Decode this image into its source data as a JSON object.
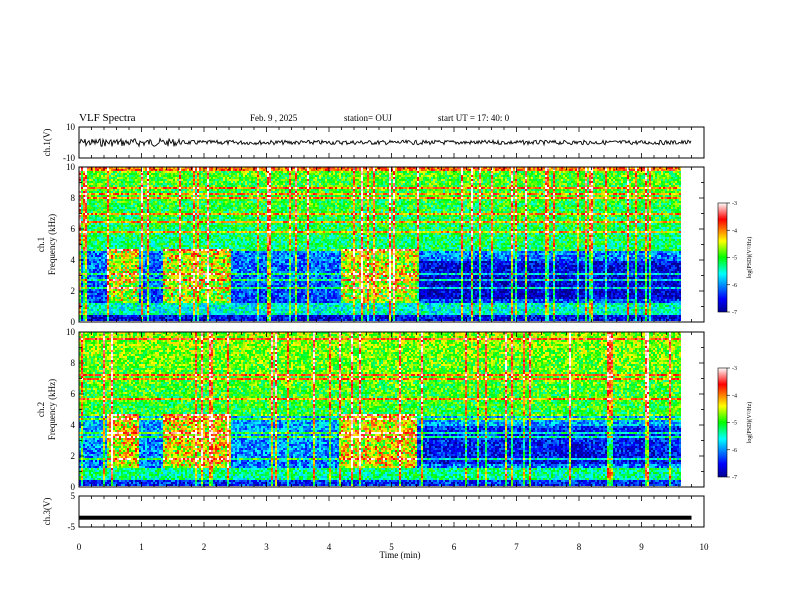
{
  "header": {
    "title": "VLF Spectra",
    "date": "Feb. 9 , 2025",
    "station": "station= OUJ",
    "start": "start UT = 17: 40: 0"
  },
  "chart_data": [
    {
      "type": "line",
      "panel": "ch1-waveform",
      "ylabel": "ch.1(V)",
      "ylim": [
        -10,
        10
      ],
      "yticks": [
        "10",
        "-10"
      ],
      "xlim": [
        0,
        10
      ],
      "series": [
        {
          "x": [
            0,
            9.8
          ],
          "y": [
            0,
            0
          ]
        }
      ]
    },
    {
      "type": "heatmap",
      "panel": "ch1-spectrogram",
      "ylabel_lines": [
        "ch.1",
        "Frequency (kHz)"
      ],
      "ylim": [
        0,
        10
      ],
      "yticks": [
        "0",
        "2",
        "4",
        "6",
        "8",
        "10"
      ],
      "xlim": [
        0,
        10
      ],
      "data_extent_x": [
        0,
        9.8
      ],
      "colorbar": {
        "label": "log(PSD)(V²/Hz)",
        "range": [
          -7,
          -3
        ],
        "ticks": [
          "-3",
          "-4",
          "-5",
          "-6",
          "-7"
        ]
      }
    },
    {
      "type": "heatmap",
      "panel": "ch2-spectrogram",
      "ylabel_lines": [
        "ch.2",
        "Frequency (kHz)"
      ],
      "ylim": [
        0,
        10
      ],
      "yticks": [
        "0",
        "2",
        "4",
        "6",
        "8",
        "10"
      ],
      "xlim": [
        0,
        10
      ],
      "data_extent_x": [
        0,
        9.8
      ],
      "colorbar": {
        "label": "log(PSD)(V²/Hz)",
        "range": [
          -7,
          -3
        ],
        "ticks": [
          "-3",
          "-4",
          "-5",
          "-6",
          "-7"
        ]
      }
    },
    {
      "type": "line",
      "panel": "ch3-waveform",
      "ylabel": "ch.3(V)",
      "ylim": [
        -5,
        5
      ],
      "yticks": [
        "5",
        "-5"
      ],
      "xlim": [
        0,
        10
      ],
      "xlabel": "Time (min)",
      "xticks": [
        "0",
        "1",
        "2",
        "3",
        "4",
        "5",
        "6",
        "7",
        "8",
        "9",
        "10"
      ],
      "series": [
        {
          "x": [
            0,
            9.8
          ],
          "y": [
            -2,
            -2
          ]
        }
      ]
    }
  ]
}
